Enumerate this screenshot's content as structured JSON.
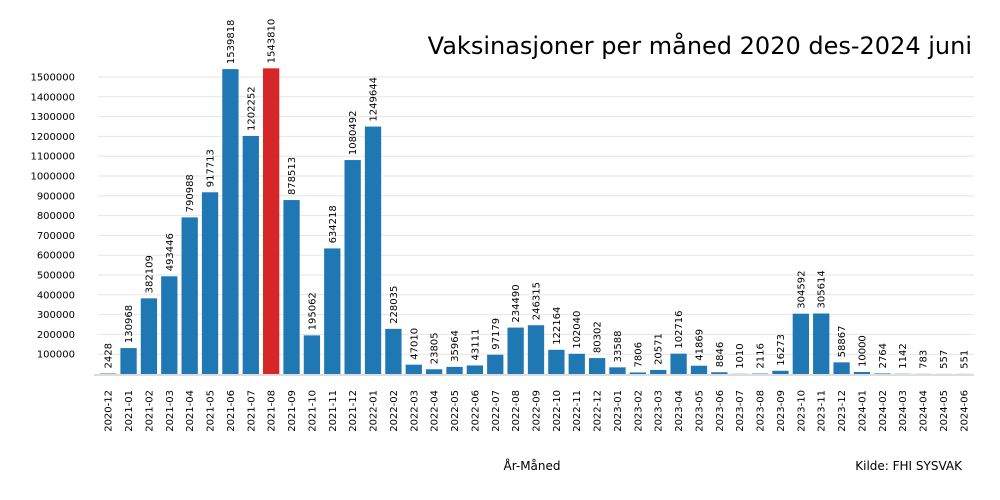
{
  "chart_data": {
    "type": "bar",
    "title": "Vaksinasjoner per måned 2020 des-2024 juni",
    "xlabel": "År-Måned",
    "ylabel": "",
    "source": "Kilde: FHI SYSVAK",
    "ylim": [
      0,
      1600000
    ],
    "yticks": [
      100000,
      200000,
      300000,
      400000,
      500000,
      600000,
      700000,
      800000,
      900000,
      1000000,
      1100000,
      1200000,
      1300000,
      1400000,
      1500000
    ],
    "grid": true,
    "bar_color": "#1f77b4",
    "highlight_color": "#d62728",
    "highlight_category": "2021-08",
    "categories": [
      "2020-12",
      "2021-01",
      "2021-02",
      "2021-03",
      "2021-04",
      "2021-05",
      "2021-06",
      "2021-07",
      "2021-08",
      "2021-09",
      "2021-10",
      "2021-11",
      "2021-12",
      "2022-01",
      "2022-02",
      "2022-03",
      "2022-04",
      "2022-05",
      "2022-06",
      "2022-07",
      "2022-08",
      "2022-09",
      "2022-10",
      "2022-11",
      "2022-12",
      "2023-01",
      "2023-02",
      "2023-03",
      "2023-04",
      "2023-05",
      "2023-06",
      "2023-07",
      "2023-08",
      "2023-09",
      "2023-10",
      "2023-11",
      "2023-12",
      "2024-01",
      "2024-02",
      "2024-03",
      "2024-04",
      "2024-05",
      "2024-06"
    ],
    "values": [
      2428,
      130968,
      382109,
      493446,
      790988,
      917713,
      1539818,
      1202252,
      1543810,
      878513,
      195062,
      634218,
      1080492,
      1249644,
      228035,
      47010,
      23805,
      35964,
      43111,
      97179,
      234490,
      246315,
      122164,
      102040,
      80302,
      33588,
      7806,
      20571,
      102716,
      41869,
      8846,
      1010,
      2116,
      16273,
      304592,
      305614,
      58867,
      10000,
      2764,
      1142,
      783,
      557,
      551
    ]
  }
}
